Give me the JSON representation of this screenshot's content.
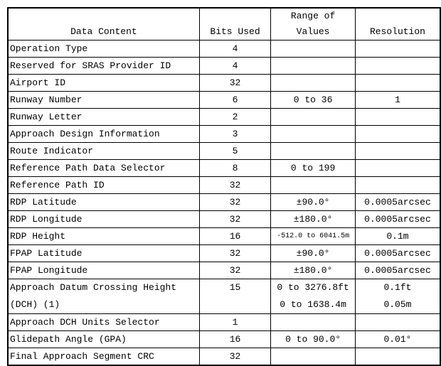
{
  "headers": {
    "content": "Data Content",
    "bits": "Bits Used",
    "range_line1": "Range of",
    "range_line2": "Values",
    "resolution": "Resolution"
  },
  "rows": [
    {
      "content": "Operation Type",
      "bits": "4",
      "range": "",
      "resolution": ""
    },
    {
      "content": "Reserved for SRAS Provider ID",
      "bits": "4",
      "range": "",
      "resolution": ""
    },
    {
      "content": "Airport ID",
      "bits": "32",
      "range": "",
      "resolution": ""
    },
    {
      "content": "Runway Number",
      "bits": "6",
      "range": "0 to 36",
      "resolution": "1"
    },
    {
      "content": "Runway Letter",
      "bits": "2",
      "range": "",
      "resolution": ""
    },
    {
      "content": "Approach Design Information",
      "bits": "3",
      "range": "",
      "resolution": ""
    },
    {
      "content": "Route Indicator",
      "bits": "5",
      "range": "",
      "resolution": ""
    },
    {
      "content": "Reference Path Data Selector",
      "bits": "8",
      "range": "0 to 199",
      "resolution": ""
    },
    {
      "content": "Reference Path ID",
      "bits": "32",
      "range": "",
      "resolution": ""
    },
    {
      "content": "RDP Latitude",
      "bits": "32",
      "range": "±90.0°",
      "resolution": "0.0005arcsec"
    },
    {
      "content": "RDP Longitude",
      "bits": "32",
      "range": "±180.0°",
      "resolution": "0.0005arcsec"
    },
    {
      "content": "RDP Height",
      "bits": "16",
      "range": "-512.0 to 6041.5m",
      "resolution": "0.1m"
    },
    {
      "content": "FPAP Latitude",
      "bits": "32",
      "range": "±90.0°",
      "resolution": "0.0005arcsec"
    },
    {
      "content": "FPAP Longitude",
      "bits": "32",
      "range": "±180.0°",
      "resolution": "0.0005arcsec"
    },
    {
      "content": "Approach Datum Crossing Height",
      "content2": "(DCH) (1)",
      "bits": "15",
      "range": "0 to 3276.8ft",
      "range2": "0 to 1638.4m",
      "resolution": "0.1ft",
      "resolution2": "0.05m"
    },
    {
      "content": "Approach DCH Units Selector",
      "bits": "1",
      "range": "",
      "resolution": ""
    },
    {
      "content": "Glidepath Angle (GPA)",
      "bits": "16",
      "range": "0 to 90.0°",
      "resolution": "0.01°"
    },
    {
      "content": "Final Approach Segment CRC",
      "bits": "32",
      "range": "",
      "resolution": ""
    }
  ]
}
